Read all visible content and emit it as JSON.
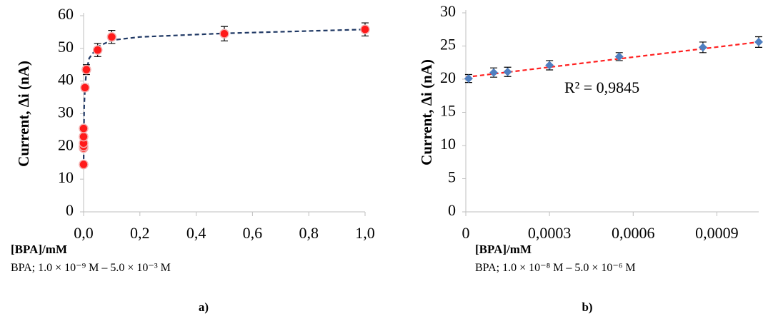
{
  "chart_data": [
    {
      "type": "scatter",
      "y_label": "Current, Δi  (nA)",
      "x_label": "[BPA]/mM",
      "subtitle": "BPA; 1.0 × 10⁻⁹ M – 5.0 × 10⁻³ M",
      "panel": "a)",
      "xlim": [
        0,
        1.0
      ],
      "ylim": [
        0,
        60
      ],
      "xticks": [
        {
          "value": 0,
          "label": "0,0"
        },
        {
          "value": 0.2,
          "label": "0,2"
        },
        {
          "value": 0.4,
          "label": "0,4"
        },
        {
          "value": 0.6,
          "label": "0,6"
        },
        {
          "value": 0.8,
          "label": "0,8"
        },
        {
          "value": 1.0,
          "label": "1,0"
        }
      ],
      "yticks": [
        0,
        10,
        20,
        30,
        40,
        50,
        60
      ],
      "series": [
        {
          "kind": "fit",
          "color": "#1f3864",
          "dashed": true,
          "x": [
            0,
            0.002,
            0.005,
            0.01,
            0.02,
            0.05,
            0.1,
            0.2,
            0.5,
            1.0
          ],
          "values": [
            14,
            32,
            38,
            43,
            47,
            50.5,
            52.5,
            53.5,
            54.6,
            55.8
          ]
        },
        {
          "kind": "points",
          "color": "#ff1a1a",
          "marker": "circle",
          "x": [
            0,
            0,
            0,
            0,
            0,
            0,
            0.005,
            0.01,
            0.05,
            0.1,
            0.5,
            1.0
          ],
          "values": [
            14.5,
            19.5,
            20,
            21,
            23,
            25.5,
            38,
            43.5,
            49.5,
            53.5,
            54.5,
            55.8
          ],
          "errors": [
            0.5,
            0.5,
            0.5,
            0.5,
            0.5,
            0.5,
            1,
            1.5,
            2,
            2,
            2.2,
            2
          ]
        }
      ]
    },
    {
      "type": "scatter",
      "y_label": "Current, Δi  (nA)",
      "x_label": "[BPA]/mM",
      "subtitle": "BPA; 1.0 × 10⁻⁸ M – 5.0 × 10⁻⁶ M",
      "panel": "b)",
      "annotation": "R² = 0,9845",
      "xlim": [
        0,
        0.00105
      ],
      "ylim": [
        0,
        30
      ],
      "xticks": [
        0,
        {
          "value": 0.0003,
          "label": "0,0003"
        },
        {
          "value": 0.0006,
          "label": "0,0006"
        },
        {
          "value": 0.0009,
          "label": "0,0009"
        }
      ],
      "yticks": [
        0,
        5,
        10,
        15,
        20,
        25,
        30
      ],
      "series": [
        {
          "kind": "fit",
          "color": "#ff2020",
          "dashed": true,
          "x": [
            0,
            0.00105
          ],
          "values": [
            20.3,
            25.6
          ]
        },
        {
          "kind": "points",
          "color": "#4f7fc0",
          "marker": "diamond",
          "x": [
            1e-05,
            0.0001,
            0.00015,
            0.0003,
            0.00055,
            0.00085,
            0.00105
          ],
          "values": [
            20.1,
            21,
            21.1,
            22.1,
            23.4,
            24.8,
            25.6
          ],
          "errors": [
            0.6,
            0.7,
            0.7,
            0.7,
            0.6,
            0.8,
            0.8
          ]
        }
      ]
    }
  ]
}
